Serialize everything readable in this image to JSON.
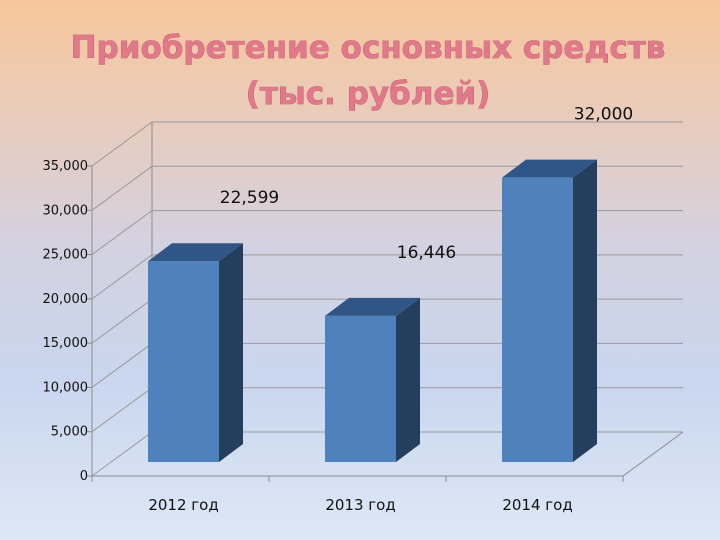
{
  "chart_data": {
    "type": "bar",
    "title": "Приобретение основных средств (тыс. рублей)",
    "title_lines": [
      "Приобретение основных средств",
      "(тыс. рублей)"
    ],
    "categories": [
      "2012 год",
      "2013 год",
      "2014 год"
    ],
    "values": [
      22599,
      16446,
      32000
    ],
    "data_labels": [
      "22,599",
      "16,446",
      "32,000"
    ],
    "y_ticks": [
      "0",
      "5,000",
      "10,000",
      "15,000",
      "20,000",
      "25,000",
      "30,000",
      "35,000"
    ],
    "ylim": [
      0,
      35000
    ],
    "xlabel": "",
    "ylabel": "",
    "grid": true,
    "legend": "none",
    "colors": {
      "bar_front": "#4f81bd",
      "bar_side": "#243f5e",
      "bar_top": "#2f5687",
      "title": "#e07a8a"
    }
  }
}
